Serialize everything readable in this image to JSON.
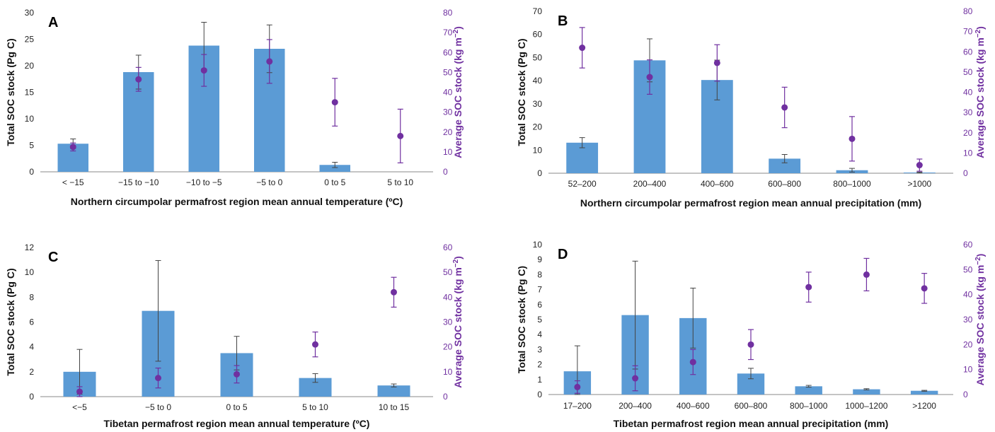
{
  "colors": {
    "bar": "#5b9bd5",
    "point": "#7030a0",
    "axis": "#888888",
    "error": "#444444"
  },
  "chart_data": [
    {
      "panel": "A",
      "type": "bar",
      "categories": [
        "< −15",
        "−15 to −10",
        "−10 to −5",
        "−5 to 0",
        "0 to 5",
        "5 to 10"
      ],
      "xlabel": "Northern circumpolar permafrost region mean annual temperature (ºC)",
      "ylabel": "Total SOC stock (Pg C)",
      "y2label_main": "Average SOC stock (kg m",
      "y2label_sup": "−2",
      "y2label_end": ")",
      "ylim": [
        0,
        30
      ],
      "yticks": [
        0,
        5,
        10,
        15,
        20,
        25,
        30
      ],
      "y2lim": [
        0,
        80
      ],
      "y2ticks": [
        0,
        10,
        20,
        30,
        40,
        50,
        60,
        70,
        80
      ],
      "series": [
        {
          "name": "Total SOC stock",
          "axis": "left",
          "values": [
            5.3,
            18.8,
            23.8,
            23.2,
            1.3,
            0
          ],
          "err": [
            0.9,
            3.2,
            4.4,
            4.5,
            0.5,
            0
          ]
        },
        {
          "name": "Average SOC stock",
          "axis": "right",
          "values": [
            12.5,
            46.5,
            51,
            55.5,
            35,
            18
          ],
          "err": [
            2,
            6,
            8,
            11,
            12,
            13.5
          ]
        }
      ]
    },
    {
      "panel": "B",
      "type": "bar",
      "categories": [
        "52–200",
        "200–400",
        "400–600",
        "600–800",
        "800–1000",
        ">1000"
      ],
      "xlabel": "Northern circumpolar permafrost region mean annual precipitation (mm)",
      "ylabel": "Total SOC stock (Pg C)",
      "y2label_main": "Average SOC stock (kg m",
      "y2label_sup": "−2",
      "y2label_end": ")",
      "ylim": [
        0,
        70
      ],
      "yticks": [
        0,
        10,
        20,
        30,
        40,
        50,
        60,
        70
      ],
      "y2lim": [
        0,
        80
      ],
      "y2ticks": [
        0,
        10,
        20,
        30,
        40,
        50,
        60,
        70,
        80
      ],
      "series": [
        {
          "name": "Total SOC stock",
          "axis": "left",
          "values": [
            13.2,
            48.8,
            40.3,
            6.3,
            1.3,
            0.3
          ],
          "err": [
            2.2,
            9.3,
            8.6,
            1.8,
            0.8,
            0.2
          ]
        },
        {
          "name": "Average SOC stock",
          "axis": "right",
          "values": [
            62,
            47.5,
            54.5,
            32.5,
            17,
            4
          ],
          "err": [
            10,
            8.5,
            9,
            10,
            11,
            3
          ]
        }
      ]
    },
    {
      "panel": "C",
      "type": "bar",
      "categories": [
        "<−5",
        "−5 to 0",
        "0 to 5",
        "5 to 10",
        "10 to 15"
      ],
      "xlabel": "Tibetan permafrost region mean annual temperature (ºC)",
      "ylabel": "Total SOC stock (Pg C)",
      "y2label_main": "Average SOC stock (kg m",
      "y2label_sup": "−2",
      "y2label_end": ")",
      "ylim": [
        0,
        12
      ],
      "yticks": [
        0,
        2,
        4,
        6,
        8,
        10,
        12
      ],
      "y2lim": [
        0,
        60
      ],
      "y2ticks": [
        0,
        10,
        20,
        30,
        40,
        50,
        60
      ],
      "series": [
        {
          "name": "Total SOC stock",
          "axis": "left",
          "values": [
            2,
            6.9,
            3.5,
            1.5,
            0.9
          ],
          "err": [
            1.8,
            4.05,
            1.35,
            0.35,
            0.12
          ]
        },
        {
          "name": "Average SOC stock",
          "axis": "right",
          "values": [
            2,
            7.5,
            9,
            21,
            42
          ],
          "err": [
            2,
            4,
            3.5,
            5,
            6
          ]
        }
      ]
    },
    {
      "panel": "D",
      "type": "bar",
      "categories": [
        "17–200",
        "200–400",
        "400–600",
        "600–800",
        "800–1000",
        "1000–1200",
        ">1200"
      ],
      "xlabel": "Tibetan permafrost region mean annual precipitation (mm)",
      "ylabel": "Total SOC stock (Pg C)",
      "y2label_main": "Average SOC stock (kg m",
      "y2label_sup": "−2",
      "y2label_end": ")",
      "ylim": [
        0,
        10
      ],
      "yticks": [
        0,
        1,
        2,
        3,
        4,
        5,
        6,
        7,
        8,
        9,
        10
      ],
      "y2lim": [
        0,
        60
      ],
      "y2ticks": [
        0,
        10,
        20,
        30,
        40,
        50,
        60
      ],
      "series": [
        {
          "name": "Total SOC stock",
          "axis": "left",
          "values": [
            1.55,
            5.3,
            5.1,
            1.4,
            0.55,
            0.35,
            0.25
          ],
          "err": [
            1.7,
            3.6,
            2,
            0.35,
            0.06,
            0.04,
            0.03
          ]
        },
        {
          "name": "Average SOC stock",
          "axis": "right",
          "values": [
            3,
            6.5,
            13,
            20,
            43,
            48,
            42.5
          ],
          "err": [
            2.5,
            5,
            5,
            6,
            6,
            6.5,
            6
          ]
        }
      ]
    }
  ]
}
